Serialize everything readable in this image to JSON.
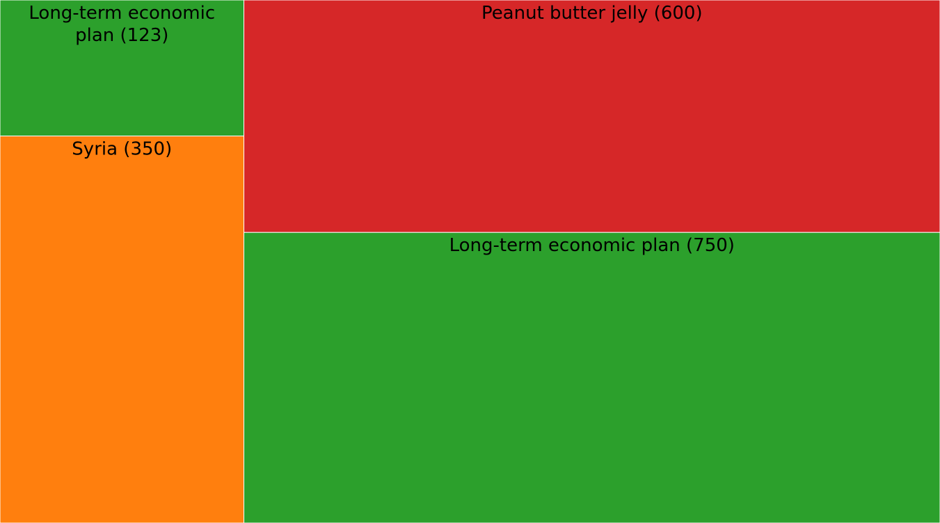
{
  "chart_data": {
    "type": "treemap",
    "title": "",
    "cells": [
      {
        "label": "Long-term economic plan",
        "value": 123,
        "color": "#2ca02c",
        "text": "Long-term economic plan (123)",
        "lines": [
          "Long-term economic",
          "plan (123)"
        ]
      },
      {
        "label": "Syria",
        "value": 350,
        "color": "#ff7f0e",
        "text": "Syria (350)",
        "lines": [
          "Syria (350)"
        ]
      },
      {
        "label": "Peanut butter jelly",
        "value": 600,
        "color": "#d62728",
        "text": "Peanut butter jelly (600)",
        "lines": [
          "Peanut butter jelly (600)"
        ]
      },
      {
        "label": "Long-term economic plan",
        "value": 750,
        "color": "#2ca02c",
        "text": "Long-term economic plan (750)",
        "lines": [
          "Long-term economic plan (750)"
        ]
      }
    ]
  }
}
